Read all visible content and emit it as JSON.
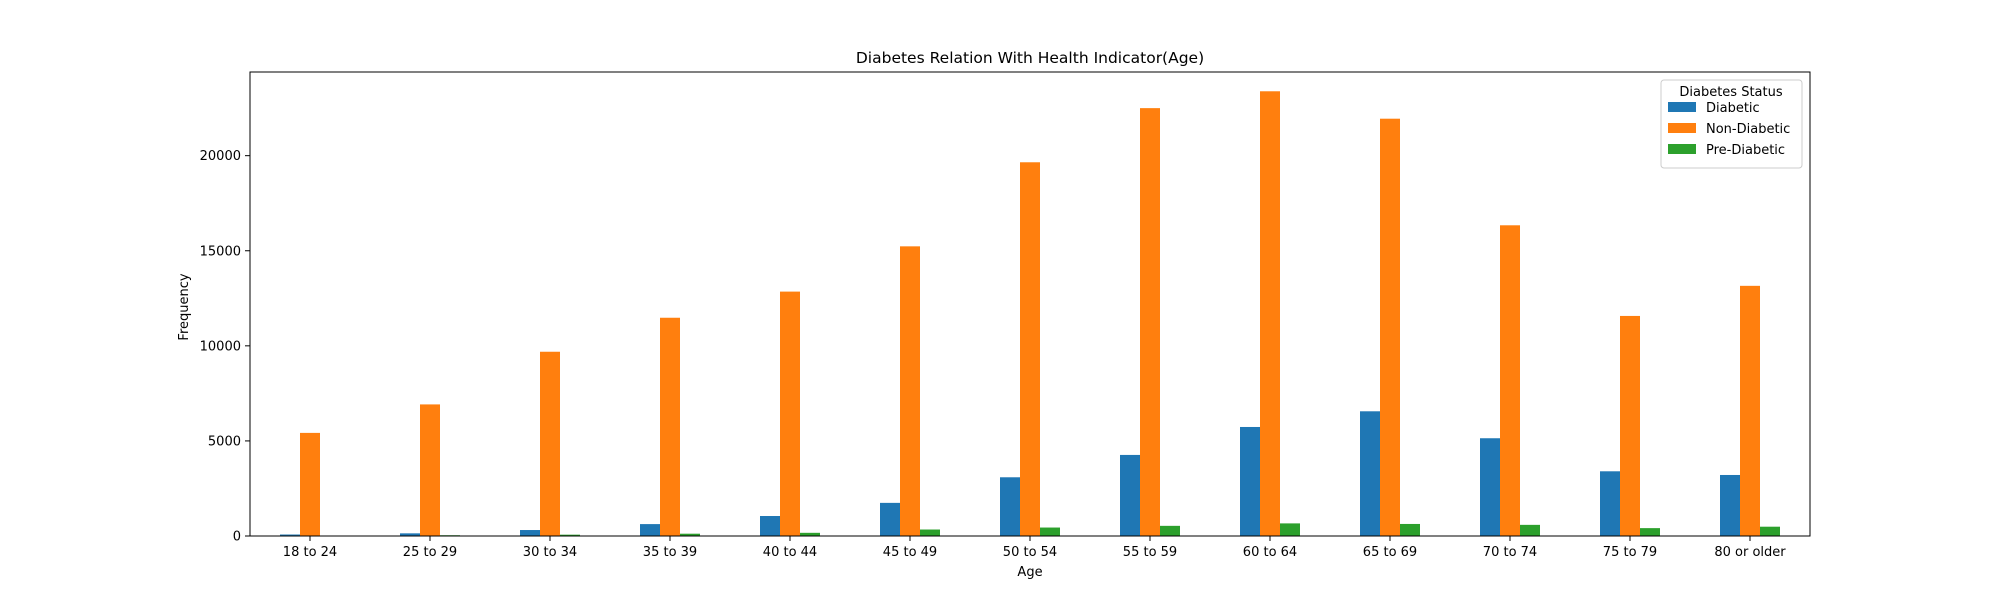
{
  "chart_data": {
    "type": "bar",
    "title": "Diabetes Relation With Health Indicator(Age)",
    "xlabel": "Age",
    "ylabel": "Frequency",
    "ylim": [
      0,
      24400
    ],
    "yticks": [
      0,
      5000,
      10000,
      15000,
      20000
    ],
    "grid": false,
    "legend": {
      "title": "Diabetes Status",
      "placement": "top-right"
    },
    "categories": [
      "18 to 24",
      "25 to 29",
      "30 to 34",
      "35 to 39",
      "40 to 44",
      "45 to 49",
      "50 to 54",
      "55 to 59",
      "60 to 64",
      "65 to 69",
      "70 to 74",
      "75 to 79",
      "80 or older"
    ],
    "series": [
      {
        "name": "Diabetic",
        "color": "#1f77b4",
        "values": [
          78,
          140,
          314,
          626,
          1051,
          1742,
          3088,
          4263,
          5733,
          6558,
          5141,
          3403,
          3209
        ]
      },
      {
        "name": "Non-Diabetic",
        "color": "#ff7f0e",
        "values": [
          5422,
          6920,
          9689,
          11477,
          12852,
          15232,
          19653,
          22500,
          23386,
          21944,
          16339,
          11572,
          13155
        ]
      },
      {
        "name": "Pre-Diabetic",
        "color": "#2ca02c",
        "values": [
          15,
          40,
          70,
          121,
          167,
          341,
          445,
          534,
          663,
          633,
          586,
          414,
          489
        ]
      }
    ]
  }
}
